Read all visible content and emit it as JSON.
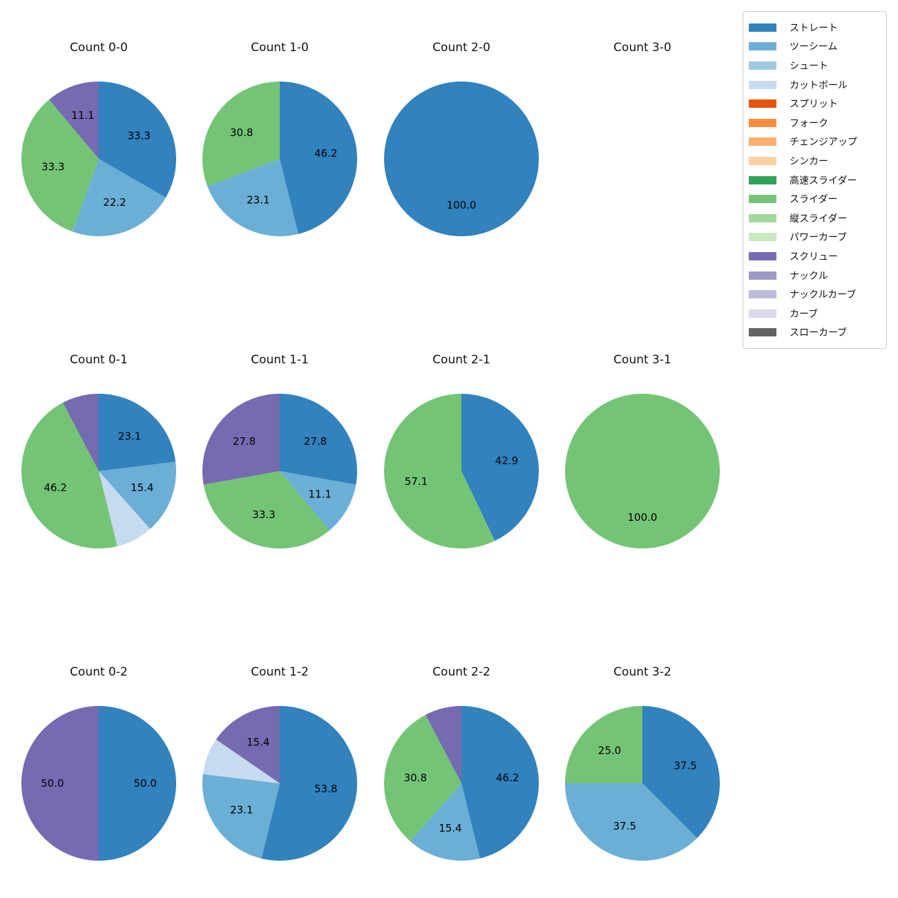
{
  "page": {
    "background": "#ffffff"
  },
  "legend": {
    "position": "top-right",
    "items": [
      {
        "label": "ストレート",
        "color": "#3182bd"
      },
      {
        "label": "ツーシーム",
        "color": "#6baed6"
      },
      {
        "label": "シュート",
        "color": "#9ecae1"
      },
      {
        "label": "カットボール",
        "color": "#c6dbef"
      },
      {
        "label": "スプリット",
        "color": "#e6550d"
      },
      {
        "label": "フォーク",
        "color": "#fd8d3c"
      },
      {
        "label": "チェンジアップ",
        "color": "#fdae6b"
      },
      {
        "label": "シンカー",
        "color": "#fdd0a2"
      },
      {
        "label": "高速スライダー",
        "color": "#31a354"
      },
      {
        "label": "スライダー",
        "color": "#74c476"
      },
      {
        "label": "縦スライダー",
        "color": "#a1d99b"
      },
      {
        "label": "パワーカーブ",
        "color": "#c7e9c0"
      },
      {
        "label": "スクリュー",
        "color": "#756bb1"
      },
      {
        "label": "ナックル",
        "color": "#9e9ac8"
      },
      {
        "label": "ナックルカーブ",
        "color": "#bcbddc"
      },
      {
        "label": "カーブ",
        "color": "#dadaeb"
      },
      {
        "label": "スローカーブ",
        "color": "#636363"
      }
    ]
  },
  "chart_data": {
    "type": "pie",
    "unit": "percent",
    "start_angle": "top",
    "direction": "clockwise",
    "label_distance": 0.6,
    "grid": {
      "rows": 3,
      "cols": 4
    },
    "pies": [
      {
        "title": "Count 0-0",
        "slices": [
          {
            "pitch": "ストレート",
            "value": 33.3,
            "label": "33.3"
          },
          {
            "pitch": "ツーシーム",
            "value": 22.2,
            "label": "22.2"
          },
          {
            "pitch": "スライダー",
            "value": 33.3,
            "label": "33.3"
          },
          {
            "pitch": "スクリュー",
            "value": 11.1,
            "label": "11.1"
          }
        ]
      },
      {
        "title": "Count 1-0",
        "slices": [
          {
            "pitch": "ストレート",
            "value": 46.2,
            "label": "46.2"
          },
          {
            "pitch": "ツーシーム",
            "value": 23.1,
            "label": "23.1"
          },
          {
            "pitch": "スライダー",
            "value": 30.8,
            "label": "30.8"
          }
        ]
      },
      {
        "title": "Count 2-0",
        "slices": [
          {
            "pitch": "ストレート",
            "value": 100.0,
            "label": "100.0"
          }
        ]
      },
      {
        "title": "Count 3-0",
        "slices": []
      },
      {
        "title": "Count 0-1",
        "slices": [
          {
            "pitch": "ストレート",
            "value": 23.1,
            "label": "23.1"
          },
          {
            "pitch": "ツーシーム",
            "value": 15.4,
            "label": "15.4"
          },
          {
            "pitch": "カットボール",
            "value": 7.7,
            "label": ""
          },
          {
            "pitch": "スライダー",
            "value": 46.2,
            "label": "46.2"
          },
          {
            "pitch": "スクリュー",
            "value": 7.7,
            "label": ""
          }
        ]
      },
      {
        "title": "Count 1-1",
        "slices": [
          {
            "pitch": "ストレート",
            "value": 27.8,
            "label": "27.8"
          },
          {
            "pitch": "ツーシーム",
            "value": 11.1,
            "label": "11.1"
          },
          {
            "pitch": "スライダー",
            "value": 33.3,
            "label": "33.3"
          },
          {
            "pitch": "スクリュー",
            "value": 27.8,
            "label": "27.8"
          }
        ]
      },
      {
        "title": "Count 2-1",
        "slices": [
          {
            "pitch": "ストレート",
            "value": 42.9,
            "label": "42.9"
          },
          {
            "pitch": "スライダー",
            "value": 57.1,
            "label": "57.1"
          }
        ]
      },
      {
        "title": "Count 3-1",
        "slices": [
          {
            "pitch": "スライダー",
            "value": 100.0,
            "label": "100.0"
          }
        ]
      },
      {
        "title": "Count 0-2",
        "slices": [
          {
            "pitch": "ストレート",
            "value": 50.0,
            "label": "50.0"
          },
          {
            "pitch": "スクリュー",
            "value": 50.0,
            "label": "50.0"
          }
        ]
      },
      {
        "title": "Count 1-2",
        "slices": [
          {
            "pitch": "ストレート",
            "value": 53.8,
            "label": "53.8"
          },
          {
            "pitch": "ツーシーム",
            "value": 23.1,
            "label": "23.1"
          },
          {
            "pitch": "カットボール",
            "value": 7.7,
            "label": ""
          },
          {
            "pitch": "スクリュー",
            "value": 15.4,
            "label": "15.4"
          }
        ]
      },
      {
        "title": "Count 2-2",
        "slices": [
          {
            "pitch": "ストレート",
            "value": 46.2,
            "label": "46.2"
          },
          {
            "pitch": "ツーシーム",
            "value": 15.4,
            "label": "15.4"
          },
          {
            "pitch": "スライダー",
            "value": 30.8,
            "label": "30.8"
          },
          {
            "pitch": "スクリュー",
            "value": 7.7,
            "label": ""
          }
        ]
      },
      {
        "title": "Count 3-2",
        "slices": [
          {
            "pitch": "ストレート",
            "value": 37.5,
            "label": "37.5"
          },
          {
            "pitch": "ツーシーム",
            "value": 37.5,
            "label": "37.5"
          },
          {
            "pitch": "スライダー",
            "value": 25.0,
            "label": "25.0"
          }
        ]
      }
    ]
  }
}
